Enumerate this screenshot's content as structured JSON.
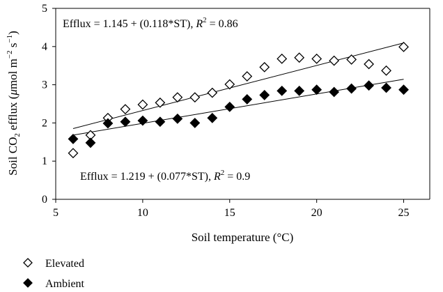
{
  "chart_data": {
    "type": "scatter",
    "xlabel": "Soil temperature (°C)",
    "ylabel": {
      "prefix": "Soil CO",
      "sub": "2",
      "mid": " efflux (",
      "mu": "μ",
      "unit": "mol m",
      "exp1": "−2",
      "space": " s",
      "exp2": "−1",
      "close": ")"
    },
    "xlim": [
      5,
      26.5
    ],
    "ylim": [
      0,
      5
    ],
    "xticks": [
      5,
      10,
      15,
      20,
      25
    ],
    "yticks": [
      0,
      1,
      2,
      3,
      4,
      5
    ],
    "grid": false,
    "legend_position": "bottom-left",
    "series": [
      {
        "name": "Elevated",
        "marker": "diamond-open",
        "color": "#000000",
        "points": [
          [
            6,
            1.21
          ],
          [
            7,
            1.68
          ],
          [
            8,
            2.13
          ],
          [
            9,
            2.36
          ],
          [
            10,
            2.48
          ],
          [
            11,
            2.53
          ],
          [
            12,
            2.67
          ],
          [
            13,
            2.67
          ],
          [
            14,
            2.79
          ],
          [
            15,
            3.01
          ],
          [
            16,
            3.22
          ],
          [
            17,
            3.46
          ],
          [
            18,
            3.68
          ],
          [
            19,
            3.71
          ],
          [
            20,
            3.68
          ],
          [
            21,
            3.63
          ],
          [
            22,
            3.66
          ],
          [
            23,
            3.54
          ],
          [
            24,
            3.37
          ],
          [
            25,
            3.99
          ]
        ],
        "fit": {
          "intercept": 1.145,
          "slope": 0.118,
          "x_range": [
            6,
            25
          ]
        }
      },
      {
        "name": "Ambient",
        "marker": "diamond-filled",
        "color": "#000000",
        "points": [
          [
            6,
            1.58
          ],
          [
            7,
            1.48
          ],
          [
            8,
            1.99
          ],
          [
            9,
            2.03
          ],
          [
            10,
            2.06
          ],
          [
            11,
            2.03
          ],
          [
            12,
            2.11
          ],
          [
            13,
            2.0
          ],
          [
            14,
            2.13
          ],
          [
            15,
            2.42
          ],
          [
            16,
            2.62
          ],
          [
            17,
            2.73
          ],
          [
            18,
            2.84
          ],
          [
            19,
            2.84
          ],
          [
            20,
            2.87
          ],
          [
            21,
            2.81
          ],
          [
            22,
            2.9
          ],
          [
            23,
            2.98
          ],
          [
            24,
            2.92
          ],
          [
            25,
            2.87
          ]
        ],
        "fit": {
          "intercept": 1.219,
          "slope": 0.077,
          "x_range": [
            6,
            25
          ]
        }
      }
    ],
    "annotations": [
      {
        "lhs": "Efflux = 1.145 + (0.118*ST), ",
        "r": "R",
        "sup": "2",
        "rhs": " = 0.86"
      },
      {
        "lhs": "Efflux = 1.219 + (0.077*ST), ",
        "r": "R",
        "sup": "2",
        "rhs": " = 0.9"
      }
    ]
  }
}
